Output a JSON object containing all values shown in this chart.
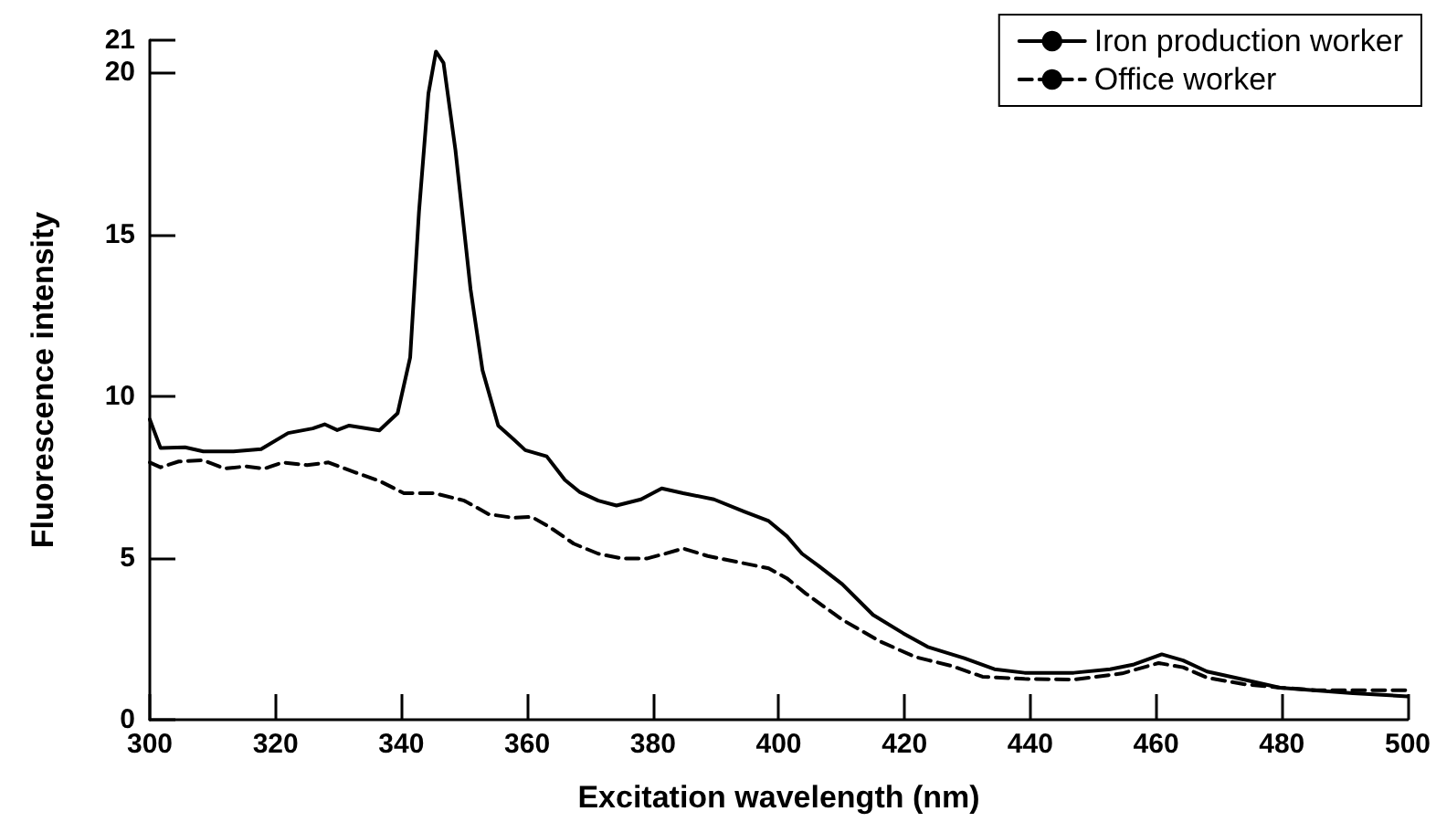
{
  "chart_data": {
    "type": "line",
    "xlabel": "Excitation wavelength (nm)",
    "ylabel": "Fluorescence intensity",
    "xlim": [
      300,
      500
    ],
    "xticks": [
      300,
      320,
      340,
      360,
      380,
      400,
      420,
      440,
      460,
      480,
      500
    ],
    "ylim": [
      0,
      21
    ],
    "yticks": [
      0,
      5,
      10,
      15,
      20,
      21
    ],
    "grid": false,
    "legend": "top right",
    "marker": "none",
    "series": [
      {
        "name": "Iron production worker",
        "color": "#000000",
        "line_style": "solid",
        "x": [
          300,
          301.7,
          305.6,
          308.5,
          313.3,
          317.7,
          322,
          325.9,
          327.8,
          329.8,
          331.7,
          336.5,
          339.4,
          341.4,
          342.8,
          344.3,
          345.5,
          346.7,
          348.6,
          351,
          352.9,
          355.4,
          357.8,
          359.7,
          363.1,
          366,
          368.4,
          371.3,
          374.2,
          378.1,
          381.4,
          384.8,
          389.7,
          394.5,
          398.4,
          401.3,
          403.7,
          406.3,
          410.1,
          415,
          419.8,
          423.7,
          429.5,
          434.3,
          439.1,
          446.9,
          452.7,
          456.5,
          460.9,
          464.3,
          468.1,
          473.9,
          479.7,
          485.5,
          491.3,
          500
        ],
        "values": [
          9.28,
          8.4,
          8.42,
          8.29,
          8.29,
          8.36,
          8.86,
          9.0,
          9.13,
          8.95,
          9.09,
          8.94,
          9.47,
          11.2,
          15.7,
          19.35,
          20.65,
          20.3,
          17.6,
          13.3,
          10.8,
          9.09,
          8.67,
          8.33,
          8.14,
          7.41,
          7.03,
          6.77,
          6.62,
          6.81,
          7.15,
          7.0,
          6.81,
          6.43,
          6.14,
          5.67,
          5.13,
          4.76,
          4.19,
          3.24,
          2.67,
          2.25,
          1.9,
          1.56,
          1.45,
          1.45,
          1.56,
          1.71,
          2.02,
          1.83,
          1.49,
          1.24,
          0.99,
          0.9,
          0.82,
          0.72
        ]
      },
      {
        "name": "Office worker",
        "color": "#000000",
        "line_style": "dashed",
        "x": [
          300,
          301.7,
          304.6,
          308.5,
          311.9,
          315.3,
          318.2,
          321.1,
          325,
          328.4,
          332.7,
          336.5,
          340.4,
          345.2,
          350,
          353.9,
          357.8,
          360.7,
          363.6,
          367.4,
          371.3,
          375.2,
          379,
          381.9,
          384.8,
          388.7,
          393.5,
          398.4,
          401.3,
          404.3,
          410.1,
          415.9,
          421.7,
          427.5,
          432.4,
          439.1,
          446.9,
          454.6,
          460.4,
          464.3,
          468.1,
          473.9,
          479.7,
          485.5,
          500
        ],
        "values": [
          7.95,
          7.8,
          7.98,
          8.02,
          7.76,
          7.83,
          7.76,
          7.95,
          7.87,
          7.95,
          7.64,
          7.38,
          7.0,
          7.0,
          6.77,
          6.35,
          6.24,
          6.27,
          5.95,
          5.44,
          5.13,
          4.98,
          4.98,
          5.13,
          5.29,
          5.06,
          4.87,
          4.68,
          4.37,
          3.9,
          3.09,
          2.44,
          1.94,
          1.66,
          1.33,
          1.26,
          1.24,
          1.43,
          1.75,
          1.62,
          1.3,
          1.1,
          0.99,
          0.91,
          0.91
        ]
      }
    ]
  }
}
